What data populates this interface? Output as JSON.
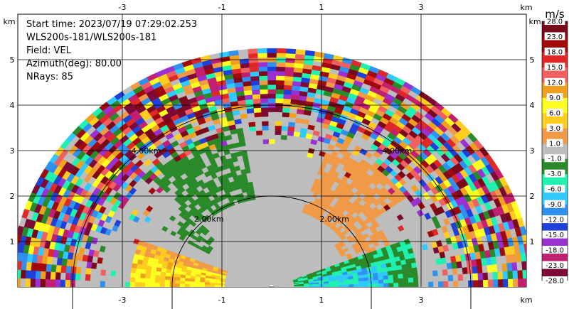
{
  "chart_data": {
    "type": "heatmap",
    "scan": "RHI sector (polar radial velocity)",
    "info_lines": [
      "Start time: 2023/07/19 07:29:02.253",
      "WLS200s-181/WLS200s-181",
      "Field: VEL",
      "Azimuth(deg): 80.00",
      "NRays: 85"
    ],
    "x_unit": "km",
    "y_unit": "km",
    "xlim": [
      -5,
      5
    ],
    "ylim": [
      0,
      5.5
    ],
    "x_ticks": [
      -3,
      -1,
      1,
      3
    ],
    "y_ticks": [
      1,
      2,
      3,
      4,
      5
    ],
    "grid": true,
    "range_rings": [
      {
        "radius_km": 2,
        "label": "2.00km"
      },
      {
        "radius_km": 4,
        "label": "4.00km"
      }
    ],
    "colorbar": {
      "unit": "m/s",
      "boundaries": [
        -28.0,
        -23.0,
        -18.0,
        -15.0,
        -12.0,
        -9.0,
        -6.0,
        -3.0,
        -1.0,
        1.0,
        3.0,
        6.0,
        9.0,
        12.0,
        15.0,
        18.0,
        23.0,
        28.0
      ],
      "labels": [
        "-28.0",
        "-23.0",
        "-18.0",
        "-15.0",
        "-12.0",
        "-9.0",
        "-6.0",
        "-3.0",
        "-1.0",
        "1.0",
        "3.0",
        "6.0",
        "9.0",
        "12.0",
        "15.0",
        "18.0",
        "23.0",
        "28.0"
      ],
      "colors": [
        "#7d0a36",
        "#c0206f",
        "#9b30d0",
        "#2040d8",
        "#3090f0",
        "#30c8ff",
        "#20f0b0",
        "#2a8a2a",
        "#bdbdbd",
        "#f09a48",
        "#ffcc20",
        "#ffff20",
        "#f0a020",
        "#f06060",
        "#e02828",
        "#a00a0a",
        "#7a0a1a"
      ]
    },
    "field_summary": {
      "max_range_km": 5.2,
      "elevation_range_deg": [
        0,
        180
      ],
      "regions": [
        {
          "description": "near-zero velocity core",
          "range_km": [
            0,
            3.8
          ],
          "color": "#bdbdbd"
        },
        {
          "description": "receding (warm) low left sector",
          "range_km": [
            1.0,
            2.9
          ],
          "elevation_deg": [
            160,
            175
          ],
          "color": "#ffcc20"
        },
        {
          "description": "approaching (cool) low right sector",
          "range_km": [
            0.5,
            3.0
          ],
          "elevation_deg": [
            5,
            20
          ],
          "color": "#20f0b0"
        },
        {
          "description": "noisy far-range gates",
          "range_km": [
            3.7,
            5.2
          ],
          "color": "mixed"
        }
      ]
    }
  }
}
